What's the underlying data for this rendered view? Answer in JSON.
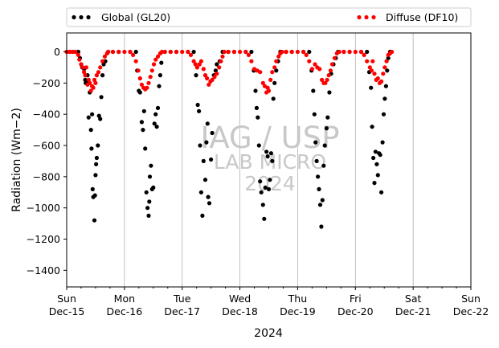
{
  "chart_data": {
    "type": "scatter",
    "xlabel": "2024",
    "ylabel": "Radiation ($Wm−2$)",
    "ylabel_display": "Radiation (Wm−2)",
    "ylim": [
      -1500,
      120
    ],
    "yticks": [
      0,
      -200,
      -400,
      -600,
      -800,
      -1000,
      -1200,
      -1400
    ],
    "xlim_days": [
      0,
      7
    ],
    "xticks": [
      {
        "day": "Sun",
        "date": "Dec-15"
      },
      {
        "day": "Mon",
        "date": "Dec-16"
      },
      {
        "day": "Tue",
        "date": "Dec-17"
      },
      {
        "day": "Wed",
        "date": "Dec-18"
      },
      {
        "day": "Thu",
        "date": "Dec-19"
      },
      {
        "day": "Fri",
        "date": "Dec-20"
      },
      {
        "day": "Sat",
        "date": "Dec-21"
      },
      {
        "day": "Sun",
        "date": "Dec-22"
      }
    ],
    "grid": "vertical lines at major ticks",
    "legend_placement": "top, outside plot area",
    "watermark": [
      "IAG / USP",
      "LAB MICRO",
      "2024"
    ],
    "series": [
      {
        "name": "Global (GL20)",
        "color": "#000000",
        "points": [
          [
            0.05,
            0
          ],
          [
            0.1,
            0
          ],
          [
            0.15,
            0
          ],
          [
            0.2,
            0
          ],
          [
            0.23,
            -40
          ],
          [
            0.25,
            -80
          ],
          [
            0.27,
            -100
          ],
          [
            0.3,
            -110
          ],
          [
            0.32,
            -180
          ],
          [
            0.33,
            -200
          ],
          [
            0.35,
            -190
          ],
          [
            0.36,
            -150
          ],
          [
            0.37,
            -200
          ],
          [
            0.38,
            -420
          ],
          [
            0.4,
            -260
          ],
          [
            0.42,
            -500
          ],
          [
            0.43,
            -620
          ],
          [
            0.44,
            -400
          ],
          [
            0.45,
            -880
          ],
          [
            0.46,
            -930
          ],
          [
            0.48,
            -1080
          ],
          [
            0.49,
            -920
          ],
          [
            0.5,
            -790
          ],
          [
            0.51,
            -720
          ],
          [
            0.52,
            -680
          ],
          [
            0.54,
            -600
          ],
          [
            0.56,
            -410
          ],
          [
            0.58,
            -430
          ],
          [
            0.6,
            -290
          ],
          [
            0.62,
            -150
          ],
          [
            0.64,
            -80
          ],
          [
            0.67,
            -60
          ],
          [
            0.72,
            0
          ],
          [
            0.8,
            0
          ],
          [
            0.9,
            0
          ],
          [
            1.1,
            0
          ],
          [
            1.2,
            0
          ],
          [
            1.22,
            -120
          ],
          [
            1.25,
            -250
          ],
          [
            1.27,
            -260
          ],
          [
            1.3,
            -450
          ],
          [
            1.32,
            -500
          ],
          [
            1.34,
            -380
          ],
          [
            1.36,
            -620
          ],
          [
            1.38,
            -900
          ],
          [
            1.4,
            -1000
          ],
          [
            1.42,
            -1050
          ],
          [
            1.43,
            -960
          ],
          [
            1.44,
            -800
          ],
          [
            1.46,
            -730
          ],
          [
            1.48,
            -880
          ],
          [
            1.5,
            -870
          ],
          [
            1.52,
            -460
          ],
          [
            1.54,
            -400
          ],
          [
            1.56,
            -480
          ],
          [
            1.58,
            -360
          ],
          [
            1.6,
            -220
          ],
          [
            1.62,
            -150
          ],
          [
            1.64,
            -70
          ],
          [
            1.7,
            0
          ],
          [
            1.8,
            0
          ],
          [
            1.9,
            0
          ],
          [
            2.1,
            0
          ],
          [
            2.2,
            0
          ],
          [
            2.24,
            -150
          ],
          [
            2.27,
            -340
          ],
          [
            2.29,
            -380
          ],
          [
            2.31,
            -600
          ],
          [
            2.33,
            -900
          ],
          [
            2.35,
            -1050
          ],
          [
            2.37,
            -700
          ],
          [
            2.4,
            -820
          ],
          [
            2.42,
            -580
          ],
          [
            2.44,
            -460
          ],
          [
            2.45,
            -930
          ],
          [
            2.47,
            -970
          ],
          [
            2.5,
            -690
          ],
          [
            2.52,
            -520
          ],
          [
            2.55,
            -150
          ],
          [
            2.58,
            -120
          ],
          [
            2.6,
            -80
          ],
          [
            2.65,
            -60
          ],
          [
            2.7,
            0
          ],
          [
            2.8,
            0
          ],
          [
            2.9,
            0
          ],
          [
            3.1,
            0
          ],
          [
            3.2,
            0
          ],
          [
            3.24,
            -120
          ],
          [
            3.27,
            -250
          ],
          [
            3.29,
            -360
          ],
          [
            3.31,
            -420
          ],
          [
            3.33,
            -600
          ],
          [
            3.35,
            -830
          ],
          [
            3.37,
            -900
          ],
          [
            3.4,
            -980
          ],
          [
            3.42,
            -1070
          ],
          [
            3.44,
            -870
          ],
          [
            3.46,
            -640
          ],
          [
            3.48,
            -670
          ],
          [
            3.5,
            -880
          ],
          [
            3.52,
            -820
          ],
          [
            3.54,
            -650
          ],
          [
            3.56,
            -700
          ],
          [
            3.58,
            -300
          ],
          [
            3.6,
            -200
          ],
          [
            3.63,
            -120
          ],
          [
            3.66,
            -60
          ],
          [
            3.7,
            0
          ],
          [
            3.8,
            0
          ],
          [
            3.9,
            0
          ],
          [
            4.1,
            0
          ],
          [
            4.2,
            0
          ],
          [
            4.24,
            -120
          ],
          [
            4.27,
            -250
          ],
          [
            4.29,
            -400
          ],
          [
            4.31,
            -580
          ],
          [
            4.33,
            -700
          ],
          [
            4.35,
            -800
          ],
          [
            4.37,
            -880
          ],
          [
            4.39,
            -980
          ],
          [
            4.41,
            -1120
          ],
          [
            4.43,
            -950
          ],
          [
            4.45,
            -730
          ],
          [
            4.47,
            -600
          ],
          [
            4.5,
            -490
          ],
          [
            4.52,
            -420
          ],
          [
            4.55,
            -260
          ],
          [
            4.58,
            -140
          ],
          [
            4.62,
            -80
          ],
          [
            4.66,
            -40
          ],
          [
            4.7,
            0
          ],
          [
            4.8,
            0
          ],
          [
            4.9,
            0
          ],
          [
            5.1,
            0
          ],
          [
            5.2,
            0
          ],
          [
            5.24,
            -130
          ],
          [
            5.27,
            -230
          ],
          [
            5.29,
            -480
          ],
          [
            5.31,
            -680
          ],
          [
            5.33,
            -840
          ],
          [
            5.35,
            -640
          ],
          [
            5.37,
            -720
          ],
          [
            5.39,
            -790
          ],
          [
            5.41,
            -650
          ],
          [
            5.43,
            -660
          ],
          [
            5.45,
            -900
          ],
          [
            5.47,
            -580
          ],
          [
            5.49,
            -400
          ],
          [
            5.51,
            -300
          ],
          [
            5.53,
            -220
          ],
          [
            5.55,
            -120
          ],
          [
            5.57,
            -40
          ],
          [
            5.6,
            0
          ]
        ]
      },
      {
        "name": "Diffuse (DF10)",
        "color": "#ff0000",
        "points": [
          [
            0.0,
            0
          ],
          [
            0.05,
            0
          ],
          [
            0.1,
            0
          ],
          [
            0.15,
            0
          ],
          [
            0.2,
            -20
          ],
          [
            0.22,
            -50
          ],
          [
            0.25,
            -80
          ],
          [
            0.28,
            -100
          ],
          [
            0.3,
            -130
          ],
          [
            0.32,
            -150
          ],
          [
            0.34,
            -100
          ],
          [
            0.36,
            -210
          ],
          [
            0.38,
            -180
          ],
          [
            0.4,
            -200
          ],
          [
            0.42,
            -250
          ],
          [
            0.44,
            -220
          ],
          [
            0.46,
            -230
          ],
          [
            0.48,
            -180
          ],
          [
            0.5,
            -200
          ],
          [
            0.52,
            -150
          ],
          [
            0.55,
            -130
          ],
          [
            0.58,
            -100
          ],
          [
            0.62,
            -60
          ],
          [
            0.66,
            -30
          ],
          [
            0.7,
            -10
          ],
          [
            0.72,
            0
          ],
          [
            0.8,
            0
          ],
          [
            0.9,
            0
          ],
          [
            1.0,
            0
          ],
          [
            1.1,
            0
          ],
          [
            1.15,
            -20
          ],
          [
            1.2,
            -60
          ],
          [
            1.24,
            -120
          ],
          [
            1.27,
            -170
          ],
          [
            1.3,
            -210
          ],
          [
            1.33,
            -230
          ],
          [
            1.36,
            -240
          ],
          [
            1.39,
            -230
          ],
          [
            1.42,
            -200
          ],
          [
            1.45,
            -160
          ],
          [
            1.48,
            -120
          ],
          [
            1.51,
            -80
          ],
          [
            1.54,
            -50
          ],
          [
            1.58,
            -30
          ],
          [
            1.62,
            -10
          ],
          [
            1.65,
            0
          ],
          [
            1.7,
            0
          ],
          [
            1.8,
            0
          ],
          [
            1.9,
            0
          ],
          [
            2.0,
            0
          ],
          [
            2.1,
            0
          ],
          [
            2.15,
            -20
          ],
          [
            2.2,
            -60
          ],
          [
            2.23,
            -80
          ],
          [
            2.26,
            -100
          ],
          [
            2.3,
            -80
          ],
          [
            2.33,
            -60
          ],
          [
            2.37,
            -110
          ],
          [
            2.4,
            -150
          ],
          [
            2.43,
            -170
          ],
          [
            2.46,
            -210
          ],
          [
            2.49,
            -190
          ],
          [
            2.52,
            -180
          ],
          [
            2.56,
            -160
          ],
          [
            2.6,
            -140
          ],
          [
            2.64,
            -100
          ],
          [
            2.67,
            -60
          ],
          [
            2.7,
            -30
          ],
          [
            2.73,
            0
          ],
          [
            2.8,
            0
          ],
          [
            2.9,
            0
          ],
          [
            3.0,
            0
          ],
          [
            3.1,
            0
          ],
          [
            3.15,
            -20
          ],
          [
            3.2,
            -60
          ],
          [
            3.25,
            -110
          ],
          [
            3.3,
            -120
          ],
          [
            3.35,
            -130
          ],
          [
            3.4,
            -200
          ],
          [
            3.43,
            -220
          ],
          [
            3.46,
            -260
          ],
          [
            3.48,
            -230
          ],
          [
            3.5,
            -250
          ],
          [
            3.53,
            -180
          ],
          [
            3.56,
            -130
          ],
          [
            3.6,
            -100
          ],
          [
            3.63,
            -60
          ],
          [
            3.67,
            -30
          ],
          [
            3.7,
            -10
          ],
          [
            3.73,
            0
          ],
          [
            3.8,
            0
          ],
          [
            3.9,
            0
          ],
          [
            4.0,
            0
          ],
          [
            4.1,
            0
          ],
          [
            4.15,
            -20
          ],
          [
            4.2,
            -60
          ],
          [
            4.25,
            -110
          ],
          [
            4.3,
            -80
          ],
          [
            4.34,
            -100
          ],
          [
            4.38,
            -110
          ],
          [
            4.42,
            -180
          ],
          [
            4.45,
            -200
          ],
          [
            4.48,
            -200
          ],
          [
            4.51,
            -180
          ],
          [
            4.54,
            -150
          ],
          [
            4.57,
            -120
          ],
          [
            4.6,
            -80
          ],
          [
            4.64,
            -40
          ],
          [
            4.68,
            -10
          ],
          [
            4.72,
            0
          ],
          [
            4.8,
            0
          ],
          [
            4.9,
            0
          ],
          [
            5.0,
            0
          ],
          [
            5.1,
            0
          ],
          [
            5.15,
            -20
          ],
          [
            5.2,
            -60
          ],
          [
            5.25,
            -100
          ],
          [
            5.28,
            -120
          ],
          [
            5.3,
            -60
          ],
          [
            5.33,
            -140
          ],
          [
            5.36,
            -180
          ],
          [
            5.39,
            -170
          ],
          [
            5.42,
            -200
          ],
          [
            5.45,
            -190
          ],
          [
            5.48,
            -140
          ],
          [
            5.51,
            -100
          ],
          [
            5.54,
            -60
          ],
          [
            5.57,
            -20
          ],
          [
            5.6,
            -10
          ],
          [
            5.63,
            0
          ]
        ]
      }
    ]
  }
}
